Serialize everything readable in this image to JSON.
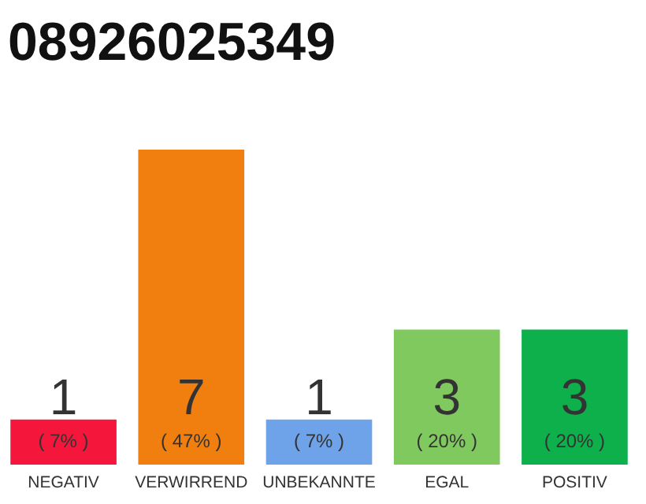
{
  "chart_data": {
    "type": "bar",
    "title": "08926025349",
    "categories": [
      "NEGATIV",
      "VERWIRREND",
      "UNBEKANNTE",
      "EGAL",
      "POSITIV"
    ],
    "values": [
      1,
      7,
      1,
      3,
      3
    ],
    "colors": [
      "#f5173b",
      "#f07f0f",
      "#6ea3ea",
      "#80c95e",
      "#0db04b"
    ],
    "ylim": [
      0,
      7
    ],
    "data_labels": true,
    "grid": false,
    "tick_labels": "x",
    "annotations": [
      "( 7% )",
      "( 47% )",
      "( 7% )",
      "( 20% )",
      "( 20% )"
    ]
  }
}
